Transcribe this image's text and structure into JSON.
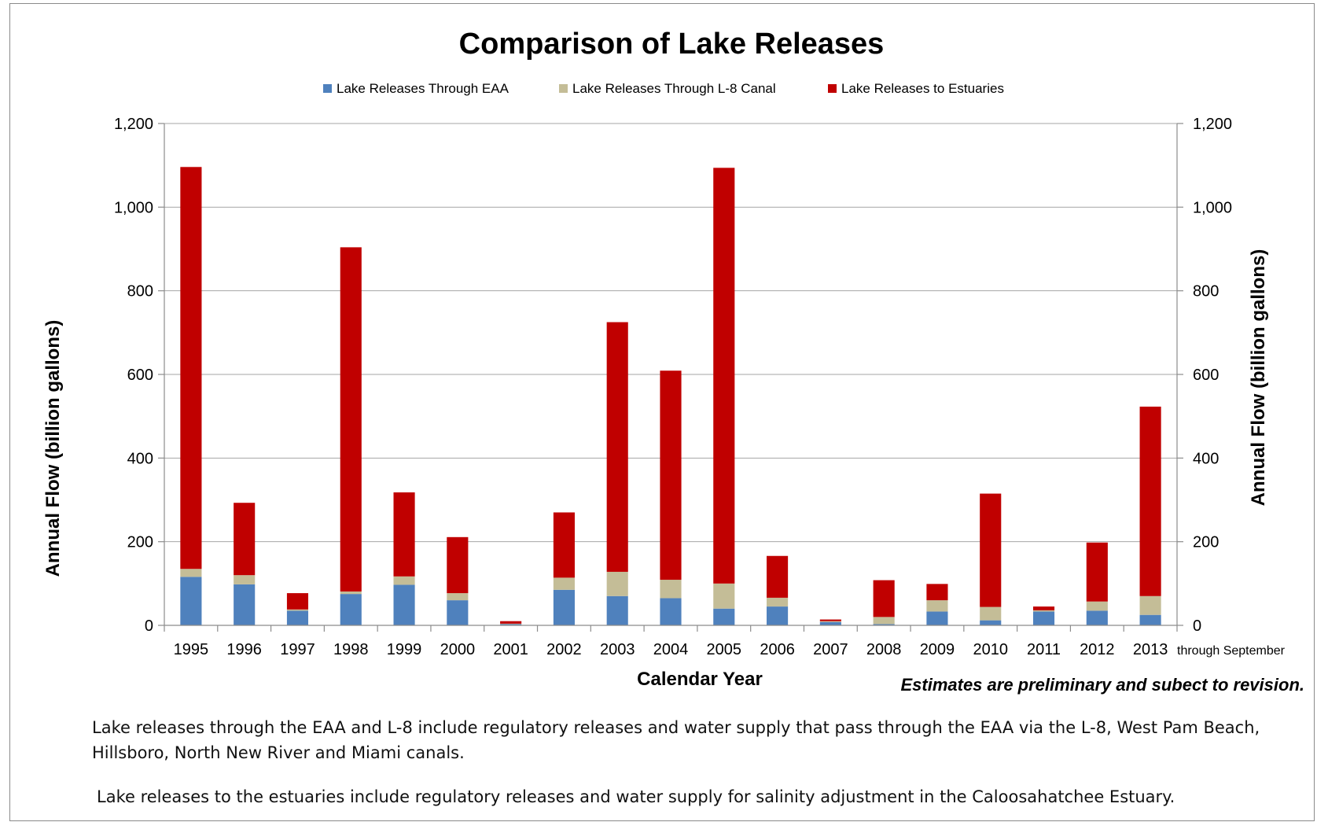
{
  "chart_data": {
    "type": "bar",
    "stacked": true,
    "title": "Comparison of Lake Releases",
    "xlabel": "Calendar Year",
    "ylabel": "Annual Flow (billion gallons)",
    "ylabel_right": "Annual Flow (billion gallons)",
    "ylim": [
      0,
      1200
    ],
    "yticks": [
      "0",
      "200",
      "400",
      "600",
      "800",
      "1,000",
      "1,200"
    ],
    "ytick_values": [
      0,
      200,
      400,
      600,
      800,
      1000,
      1200
    ],
    "grid": true,
    "legend_position": "top",
    "categories": [
      "1995",
      "1996",
      "1997",
      "1998",
      "1999",
      "2000",
      "2001",
      "2002",
      "2003",
      "2004",
      "2005",
      "2006",
      "2007",
      "2008",
      "2009",
      "2010",
      "2011",
      "2012",
      "2013"
    ],
    "last_category_suffix": "through September",
    "series": [
      {
        "name": "Lake Releases Through EAA",
        "color": "#4f81bd",
        "values": [
          116,
          98,
          35,
          75,
          97,
          60,
          3,
          85,
          70,
          65,
          40,
          45,
          8,
          3,
          33,
          12,
          33,
          35,
          25
        ]
      },
      {
        "name": "Lake Releases Through L-8 Canal",
        "color": "#c4bd97",
        "values": [
          19,
          22,
          3,
          6,
          20,
          17,
          1,
          29,
          58,
          44,
          60,
          21,
          2,
          17,
          27,
          32,
          3,
          22,
          45
        ]
      },
      {
        "name": "Lake Releases to Estuaries",
        "color": "#c00000",
        "values": [
          961,
          173,
          39,
          823,
          201,
          134,
          6,
          156,
          597,
          500,
          994,
          100,
          4,
          88,
          39,
          271,
          9,
          141,
          453
        ]
      }
    ],
    "annotation": "Estimates are preliminary and subect to revision."
  },
  "notes": [
    "Lake releases through the EAA and L-8 include regulatory releases and water supply that pass through the EAA via the L-8, West Pam Beach, Hillsboro, North New River and Miami canals.",
    "Lake releases to the estuaries include regulatory releases and water supply for salinity adjustment in the Caloosahatchee Estuary."
  ]
}
